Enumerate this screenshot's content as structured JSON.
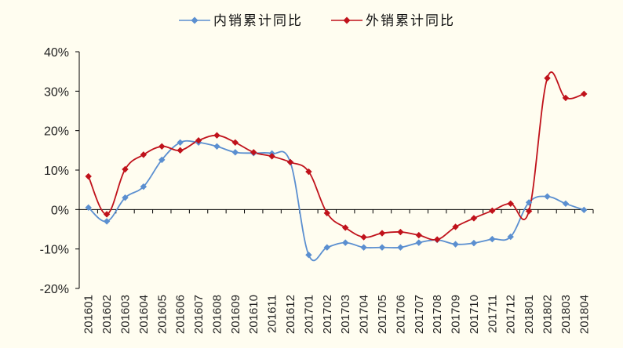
{
  "colors": {
    "background": "#fffdf0",
    "domestic": "#5b8fd0",
    "export": "#c0121b",
    "axis": "#000000"
  },
  "chart_data": {
    "type": "line",
    "title": "",
    "xlabel": "",
    "ylabel": "",
    "ylim": [
      -20,
      40
    ],
    "y_ticks": [
      -20,
      -10,
      0,
      10,
      20,
      30,
      40
    ],
    "y_tick_labels": [
      "-20%",
      "-10%",
      "0%",
      "10%",
      "20%",
      "30%",
      "40%"
    ],
    "grid": false,
    "legend": "top",
    "categories": [
      "201601",
      "201602",
      "201603",
      "201604",
      "201605",
      "201606",
      "201607",
      "201608",
      "201609",
      "201610",
      "201611",
      "201612",
      "201701",
      "201702",
      "201703",
      "201704",
      "201705",
      "201706",
      "201707",
      "201708",
      "201709",
      "201710",
      "201711",
      "201712",
      "201801",
      "201802",
      "201803",
      "201804"
    ],
    "series": [
      {
        "name": "内销累计同比",
        "color": "#5b8fd0",
        "marker": "diamond",
        "values": [
          0.5,
          -3,
          3,
          5.8,
          12.6,
          17,
          17,
          16,
          14.5,
          14.3,
          14.2,
          12,
          -11.5,
          -9.6,
          -8.4,
          -9.6,
          -9.6,
          -9.6,
          -8.4,
          -7.7,
          -8.8,
          -8.5,
          -7.5,
          -6.9,
          1.8,
          3.3,
          1.5,
          -0.1
        ]
      },
      {
        "name": "外销累计同比",
        "color": "#c0121b",
        "marker": "diamond",
        "values": [
          8.4,
          -1.2,
          10.2,
          13.9,
          16,
          15,
          17.5,
          18.8,
          17,
          14.5,
          13.5,
          12,
          9.6,
          -0.9,
          -4.6,
          -7,
          -6,
          -5.7,
          -6.5,
          -7.6,
          -4.4,
          -2.2,
          -0.3,
          1.5,
          -0.4,
          33.3,
          28.3,
          29.3
        ]
      }
    ]
  }
}
